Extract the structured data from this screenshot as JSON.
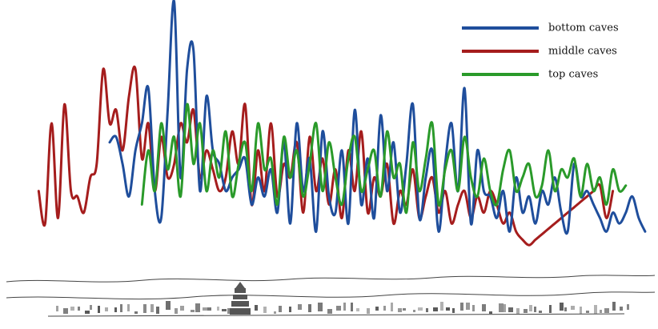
{
  "chart_data": {
    "type": "line",
    "title": "",
    "xlabel": "",
    "ylabel": "",
    "axes_visible": false,
    "grid": false,
    "legend_placement": "top-right",
    "xlim": [
      0,
      100
    ],
    "ylim": [
      0,
      100
    ],
    "background_image": "panorama-sketch-of-cave-cliff",
    "series": [
      {
        "name": "bottom caves",
        "color": "#1f4e9c",
        "x": [
          16,
          17,
          18,
          19,
          20,
          21,
          22,
          23,
          24,
          25,
          26,
          27,
          28,
          29,
          30,
          31,
          32,
          33,
          34,
          35,
          36,
          37,
          38,
          39,
          40,
          41,
          42,
          43,
          44,
          45,
          46,
          47,
          48,
          49,
          50,
          51,
          52,
          53,
          54,
          55,
          56,
          57,
          58,
          59,
          60,
          61,
          62,
          63,
          64,
          65,
          66,
          67,
          68,
          69,
          70,
          71,
          72,
          73,
          74,
          75,
          76,
          77,
          78,
          79,
          80,
          81,
          82,
          83,
          84,
          85,
          86,
          87,
          88,
          89,
          90,
          91,
          92,
          93,
          94,
          95,
          96,
          97,
          98,
          99
        ],
        "y": [
          48,
          50,
          40,
          28,
          45,
          55,
          68,
          30,
          20,
          60,
          100,
          35,
          75,
          82,
          30,
          65,
          45,
          40,
          30,
          35,
          38,
          42,
          25,
          35,
          28,
          38,
          22,
          48,
          18,
          55,
          30,
          42,
          15,
          52,
          28,
          22,
          45,
          18,
          60,
          25,
          42,
          20,
          58,
          30,
          48,
          22,
          40,
          62,
          20,
          35,
          45,
          15,
          40,
          55,
          30,
          68,
          18,
          45,
          30,
          28,
          20,
          30,
          15,
          35,
          22,
          28,
          18,
          30,
          25,
          35,
          22,
          15,
          40,
          28,
          30,
          25,
          20,
          15,
          22,
          18,
          22,
          28,
          20,
          15
        ]
      },
      {
        "name": "middle caves",
        "color": "#a51d1d",
        "x": [
          5,
          6,
          7,
          8,
          9,
          10,
          11,
          12,
          13,
          14,
          15,
          16,
          17,
          18,
          19,
          20,
          21,
          22,
          23,
          24,
          25,
          26,
          27,
          28,
          29,
          30,
          31,
          32,
          33,
          34,
          35,
          36,
          37,
          38,
          39,
          40,
          41,
          42,
          43,
          44,
          45,
          46,
          47,
          48,
          49,
          50,
          51,
          52,
          53,
          54,
          55,
          56,
          57,
          58,
          59,
          60,
          61,
          62,
          63,
          64,
          65,
          66,
          67,
          68,
          69,
          70,
          71,
          72,
          73,
          74,
          75,
          76,
          77,
          78,
          79,
          80,
          81,
          82,
          83,
          84,
          85,
          86,
          87,
          88,
          89,
          90,
          91,
          92,
          93,
          94
        ],
        "y": [
          30,
          18,
          55,
          20,
          62,
          30,
          28,
          22,
          35,
          40,
          75,
          55,
          60,
          45,
          65,
          75,
          42,
          55,
          30,
          50,
          35,
          40,
          55,
          48,
          60,
          35,
          45,
          38,
          30,
          35,
          52,
          40,
          62,
          25,
          45,
          30,
          55,
          28,
          40,
          35,
          48,
          22,
          50,
          30,
          42,
          25,
          38,
          20,
          45,
          30,
          52,
          22,
          35,
          28,
          40,
          18,
          30,
          25,
          38,
          20,
          28,
          35,
          22,
          30,
          18,
          25,
          30,
          20,
          28,
          22,
          30,
          25,
          18,
          22,
          15,
          12,
          10,
          12,
          14,
          16,
          18,
          20,
          22,
          24,
          26,
          28,
          30,
          32,
          20,
          30
        ]
      },
      {
        "name": "top caves",
        "color": "#2a9a2a",
        "x": [
          21,
          22,
          23,
          24,
          25,
          26,
          27,
          28,
          29,
          30,
          31,
          32,
          33,
          34,
          35,
          36,
          37,
          38,
          39,
          40,
          41,
          42,
          43,
          44,
          45,
          46,
          47,
          48,
          49,
          50,
          51,
          52,
          53,
          54,
          55,
          56,
          57,
          58,
          59,
          60,
          61,
          62,
          63,
          64,
          65,
          66,
          67,
          68,
          69,
          70,
          71,
          72,
          73,
          74,
          75,
          76,
          77,
          78,
          79,
          80,
          81,
          82,
          83,
          84,
          85,
          86,
          87,
          88,
          89,
          90,
          91,
          92,
          93,
          94,
          95,
          96
        ],
        "y": [
          25,
          45,
          30,
          55,
          38,
          50,
          28,
          62,
          40,
          55,
          30,
          45,
          35,
          52,
          28,
          40,
          48,
          30,
          55,
          38,
          42,
          25,
          50,
          35,
          45,
          28,
          40,
          55,
          30,
          48,
          35,
          25,
          42,
          50,
          30,
          38,
          45,
          28,
          52,
          35,
          40,
          22,
          48,
          30,
          42,
          55,
          25,
          38,
          45,
          30,
          50,
          35,
          28,
          42,
          30,
          25,
          38,
          45,
          30,
          35,
          40,
          28,
          32,
          45,
          30,
          38,
          35,
          42,
          28,
          40,
          30,
          35,
          25,
          38,
          30,
          32
        ]
      }
    ]
  }
}
